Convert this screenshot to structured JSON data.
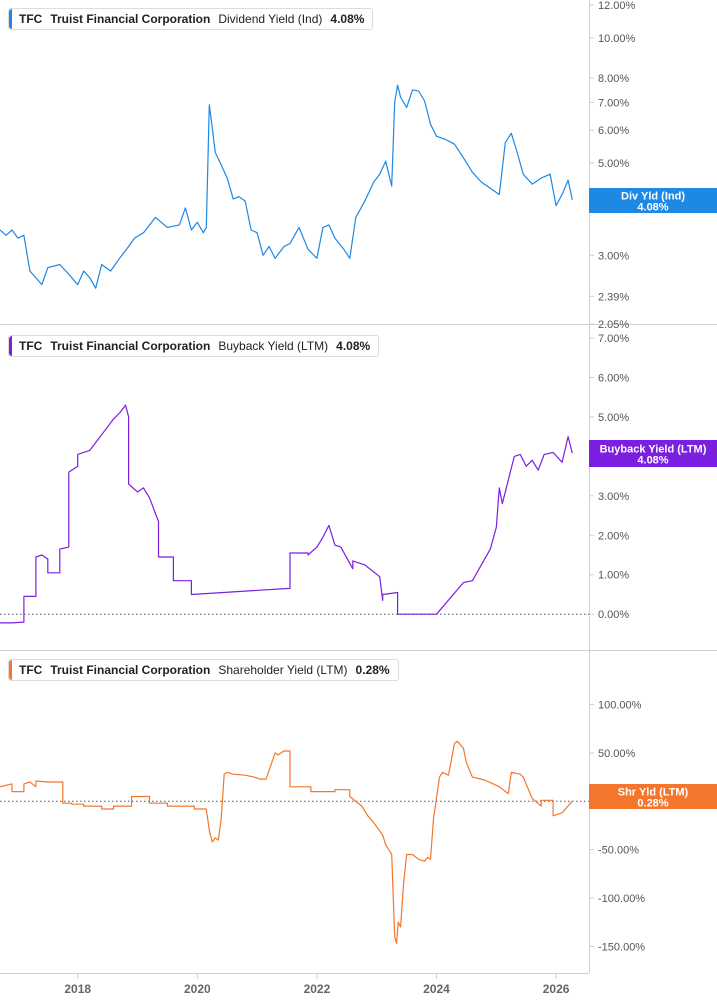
{
  "chart_data": [
    {
      "type": "line",
      "ticker": "TFC",
      "company": "Truist Financial Corporation",
      "metric": "Dividend Yield (Ind)",
      "value_label": "4.08%",
      "tag_name": "Div Yld (Ind)",
      "tag_value": "4.08%",
      "color": "#1E88E5",
      "scale": "log",
      "ylim": [
        2.05,
        12.0
      ],
      "y_ticks": [
        "12.00%",
        "10.00%",
        "8.00%",
        "7.00%",
        "6.00%",
        "5.00%",
        "4.00%",
        "3.00%",
        "2.39%",
        "2.05%"
      ],
      "y_tick_values": [
        12.0,
        10.0,
        8.0,
        7.0,
        6.0,
        5.0,
        4.0,
        3.0,
        2.39,
        2.05
      ],
      "x": [
        2016.7,
        2016.8,
        2016.9,
        2017.0,
        2017.1,
        2017.2,
        2017.4,
        2017.5,
        2017.7,
        2017.85,
        2018.0,
        2018.1,
        2018.2,
        2018.3,
        2018.4,
        2018.55,
        2018.7,
        2018.85,
        2018.95,
        2019.1,
        2019.3,
        2019.5,
        2019.7,
        2019.8,
        2019.9,
        2020.0,
        2020.1,
        2020.15,
        2020.2,
        2020.23,
        2020.3,
        2020.4,
        2020.5,
        2020.6,
        2020.7,
        2020.8,
        2020.9,
        2021.0,
        2021.1,
        2021.2,
        2021.3,
        2021.45,
        2021.55,
        2021.7,
        2021.85,
        2022.0,
        2022.1,
        2022.2,
        2022.3,
        2022.45,
        2022.55,
        2022.65,
        2022.8,
        2022.95,
        2023.05,
        2023.15,
        2023.25,
        2023.3,
        2023.35,
        2023.4,
        2023.5,
        2023.6,
        2023.7,
        2023.8,
        2023.9,
        2024.0,
        2024.15,
        2024.3,
        2024.45,
        2024.6,
        2024.75,
        2024.9,
        2025.05,
        2025.15,
        2025.25,
        2025.35,
        2025.45,
        2025.6,
        2025.75,
        2025.9,
        2026.0,
        2026.1,
        2026.2,
        2026.27
      ],
      "values": [
        3.45,
        3.35,
        3.45,
        3.3,
        3.35,
        2.75,
        2.55,
        2.8,
        2.85,
        2.7,
        2.55,
        2.75,
        2.65,
        2.5,
        2.85,
        2.75,
        2.95,
        3.15,
        3.3,
        3.4,
        3.7,
        3.5,
        3.55,
        3.9,
        3.45,
        3.6,
        3.4,
        3.5,
        6.9,
        6.4,
        5.3,
        4.95,
        4.6,
        4.1,
        4.15,
        4.05,
        3.45,
        3.4,
        3.0,
        3.15,
        2.95,
        3.15,
        3.2,
        3.5,
        3.1,
        2.95,
        3.5,
        3.55,
        3.3,
        3.1,
        2.95,
        3.7,
        4.05,
        4.5,
        4.7,
        5.05,
        4.4,
        7.0,
        7.7,
        7.2,
        6.8,
        7.5,
        7.45,
        7.05,
        6.2,
        5.8,
        5.7,
        5.55,
        5.15,
        4.75,
        4.5,
        4.35,
        4.2,
        5.6,
        5.9,
        5.3,
        4.7,
        4.45,
        4.6,
        4.7,
        3.95,
        4.2,
        4.55,
        4.08
      ]
    },
    {
      "type": "line",
      "ticker": "TFC",
      "company": "Truist Financial Corporation",
      "metric": "Buyback Yield (LTM)",
      "value_label": "4.08%",
      "tag_name": "Buyback Yield (LTM)",
      "tag_value": "4.08%",
      "color": "#7B1FE0",
      "scale": "linear",
      "ylim": [
        -0.35,
        7.0
      ],
      "y_ticks": [
        "7.00%",
        "6.00%",
        "5.00%",
        "4.00%",
        "3.00%",
        "2.00%",
        "1.00%",
        "0.00%"
      ],
      "y_tick_values": [
        7.0,
        6.0,
        5.0,
        4.0,
        3.0,
        2.0,
        1.0,
        0.0
      ],
      "zero_line": 0,
      "x": [
        2016.7,
        2016.9,
        2017.1,
        2017.1,
        2017.3,
        2017.3,
        2017.4,
        2017.5,
        2017.5,
        2017.7,
        2017.7,
        2017.85,
        2017.85,
        2018.0,
        2018.0,
        2018.2,
        2018.35,
        2018.5,
        2018.6,
        2018.7,
        2018.8,
        2018.85,
        2018.85,
        2019.0,
        2019.1,
        2019.2,
        2019.35,
        2019.35,
        2019.6,
        2019.6,
        2019.9,
        2019.9,
        2021.5,
        2021.55,
        2021.55,
        2021.85,
        2021.85,
        2022.0,
        2022.1,
        2022.2,
        2022.3,
        2022.4,
        2022.6,
        2022.6,
        2022.8,
        2023.05,
        2023.1,
        2023.1,
        2023.35,
        2023.35,
        2023.55,
        2023.7,
        2023.7,
        2024.0,
        2024.45,
        2024.6,
        2024.9,
        2025.0,
        2025.05,
        2025.1,
        2025.2,
        2025.3,
        2025.4,
        2025.5,
        2025.6,
        2025.7,
        2025.8,
        2025.95,
        2026.1,
        2026.2,
        2026.27
      ],
      "values": [
        -0.22,
        -0.22,
        -0.2,
        0.45,
        0.45,
        1.45,
        1.5,
        1.4,
        1.05,
        1.05,
        1.65,
        1.7,
        3.6,
        3.75,
        4.05,
        4.15,
        4.45,
        4.75,
        4.95,
        5.1,
        5.3,
        5.0,
        3.3,
        3.1,
        3.2,
        2.95,
        2.35,
        1.45,
        1.45,
        0.85,
        0.85,
        0.5,
        0.65,
        0.65,
        1.55,
        1.55,
        1.5,
        1.7,
        1.95,
        2.25,
        1.75,
        1.7,
        1.15,
        1.35,
        1.25,
        0.95,
        0.35,
        0.5,
        0.55,
        0.0,
        0.0,
        0.0,
        0.0,
        0.0,
        0.8,
        0.85,
        1.65,
        2.2,
        3.2,
        2.8,
        3.4,
        4.0,
        4.05,
        3.75,
        3.9,
        3.65,
        4.05,
        4.1,
        3.85,
        4.5,
        4.08
      ]
    },
    {
      "type": "line",
      "ticker": "TFC",
      "company": "Truist Financial Corporation",
      "metric": "Shareholder Yield (LTM)",
      "value_label": "0.28%",
      "tag_name": "Shr Yld (LTM)",
      "tag_value": "0.28%",
      "color": "#F4762D",
      "scale": "linear",
      "ylim": [
        -160,
        112
      ],
      "y_ticks": [
        "100.00%",
        "50.00%",
        "0.00%",
        "-50.00%",
        "-100.00%",
        "-150.00%"
      ],
      "y_tick_values": [
        100,
        50,
        0,
        -50,
        -100,
        -150
      ],
      "zero_line": 0,
      "x": [
        2016.7,
        2016.9,
        2016.9,
        2017.1,
        2017.1,
        2017.2,
        2017.3,
        2017.3,
        2017.5,
        2017.75,
        2017.75,
        2017.9,
        2017.9,
        2018.1,
        2018.1,
        2018.4,
        2018.4,
        2018.6,
        2018.6,
        2018.9,
        2018.9,
        2019.2,
        2019.2,
        2019.5,
        2019.5,
        2019.95,
        2019.95,
        2020.15,
        2020.2,
        2020.25,
        2020.3,
        2020.35,
        2020.4,
        2020.45,
        2020.5,
        2020.6,
        2020.8,
        2020.95,
        2021.05,
        2021.15,
        2021.3,
        2021.35,
        2021.45,
        2021.55,
        2021.55,
        2021.9,
        2021.9,
        2022.3,
        2022.3,
        2022.55,
        2022.55,
        2022.75,
        2022.85,
        2022.95,
        2023.1,
        2023.15,
        2023.25,
        2023.3,
        2023.33,
        2023.36,
        2023.4,
        2023.45,
        2023.5,
        2023.6,
        2023.7,
        2023.8,
        2023.85,
        2023.9,
        2023.95,
        2024.05,
        2024.1,
        2024.2,
        2024.3,
        2024.35,
        2024.45,
        2024.5,
        2024.6,
        2024.8,
        2024.95,
        2025.05,
        2025.2,
        2025.25,
        2025.4,
        2025.45,
        2025.6,
        2025.75,
        2025.75,
        2025.95,
        2025.95,
        2026.1,
        2026.27
      ],
      "values": [
        15,
        18,
        10,
        10,
        18,
        20,
        15,
        21,
        20,
        20,
        -2,
        -2,
        -3,
        -3,
        -5,
        -5,
        -8,
        -8,
        -5,
        -5,
        5,
        5,
        -2,
        -2,
        -5,
        -5,
        -8,
        -8,
        -30,
        -42,
        -38,
        -40,
        -18,
        28,
        30,
        28,
        27,
        25,
        23,
        23,
        50,
        48,
        52,
        52,
        15,
        15,
        10,
        10,
        12,
        12,
        5,
        -5,
        -15,
        -22,
        -35,
        -45,
        -55,
        -140,
        -147,
        -125,
        -130,
        -85,
        -55,
        -55,
        -60,
        -62,
        -58,
        -60,
        -18,
        25,
        30,
        27,
        60,
        62,
        55,
        40,
        25,
        22,
        18,
        15,
        8,
        30,
        28,
        25,
        3,
        -5,
        1,
        1,
        -15,
        -12,
        0.28
      ]
    }
  ],
  "x_ticks": [
    "2018",
    "2020",
    "2022",
    "2024",
    "2026"
  ],
  "x_tick_values": [
    2018,
    2020,
    2022,
    2024,
    2026
  ],
  "x_range": [
    2016.7,
    2026.55
  ]
}
